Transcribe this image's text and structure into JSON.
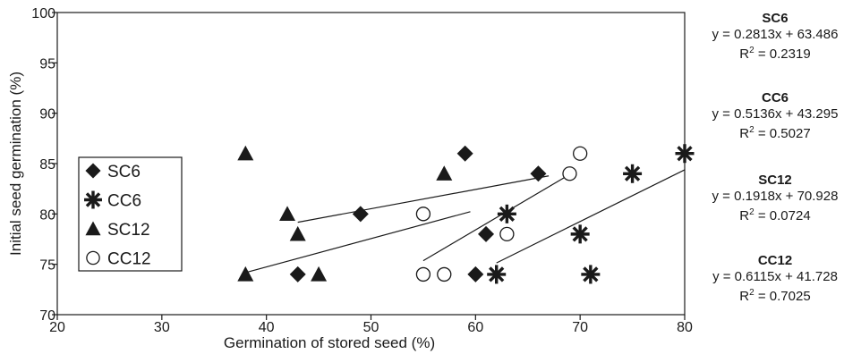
{
  "chart_data": {
    "type": "scatter",
    "xlabel": "Germination of stored seed (%)",
    "ylabel": "Initial seed germination (%)",
    "xlim": [
      20,
      80
    ],
    "ylim": [
      70,
      100
    ],
    "xticks": [
      "20",
      "30",
      "40",
      "50",
      "60",
      "70",
      "80"
    ],
    "yticks": [
      "70",
      "75",
      "80",
      "85",
      "90",
      "95",
      "100"
    ],
    "grid": false,
    "legend": "left-middle",
    "series": [
      {
        "name": "SC6",
        "marker": "diamond",
        "points": [
          [
            43,
            74
          ],
          [
            49,
            80
          ],
          [
            59,
            86
          ],
          [
            60,
            74
          ],
          [
            61,
            78
          ],
          [
            66,
            84
          ]
        ],
        "trend": {
          "slope": 0.2813,
          "intercept": 63.486,
          "x_range": [
            38,
            59.5
          ]
        },
        "equation": "y = 0.2813x + 63.486",
        "r2_label": "R",
        "r2_sup": "2",
        "r2_value": " = 0.2319"
      },
      {
        "name": "CC6",
        "marker": "asterisk",
        "points": [
          [
            62,
            74
          ],
          [
            63,
            80
          ],
          [
            70,
            78
          ],
          [
            71,
            74
          ],
          [
            75,
            84
          ],
          [
            80,
            86
          ]
        ],
        "trend": {
          "slope": 0.5136,
          "intercept": 43.295,
          "x_range": [
            62,
            80
          ]
        },
        "equation": "y = 0.5136x + 43.295",
        "r2_label": "R",
        "r2_sup": "2",
        "r2_value": " = 0.5027"
      },
      {
        "name": "SC12",
        "marker": "triangle",
        "points": [
          [
            38,
            74
          ],
          [
            38,
            86
          ],
          [
            42,
            80
          ],
          [
            43,
            78
          ],
          [
            45,
            74
          ],
          [
            57,
            84
          ]
        ],
        "trend": {
          "slope": 0.1918,
          "intercept": 70.928,
          "x_range": [
            43,
            67
          ]
        },
        "equation": "y = 0.1918x + 70.928",
        "r2_label": "R",
        "r2_sup": "2",
        "r2_value": " = 0.0724"
      },
      {
        "name": "CC12",
        "marker": "circle",
        "points": [
          [
            55,
            74
          ],
          [
            55,
            80
          ],
          [
            57,
            74
          ],
          [
            63,
            78
          ],
          [
            69,
            84
          ],
          [
            70,
            86
          ]
        ],
        "trend": {
          "slope": 0.6115,
          "intercept": 41.728,
          "x_range": [
            55,
            69
          ]
        },
        "equation": "y = 0.6115x + 41.728",
        "r2_label": "R",
        "r2_sup": "2",
        "r2_value": " = 0.7025"
      }
    ]
  }
}
